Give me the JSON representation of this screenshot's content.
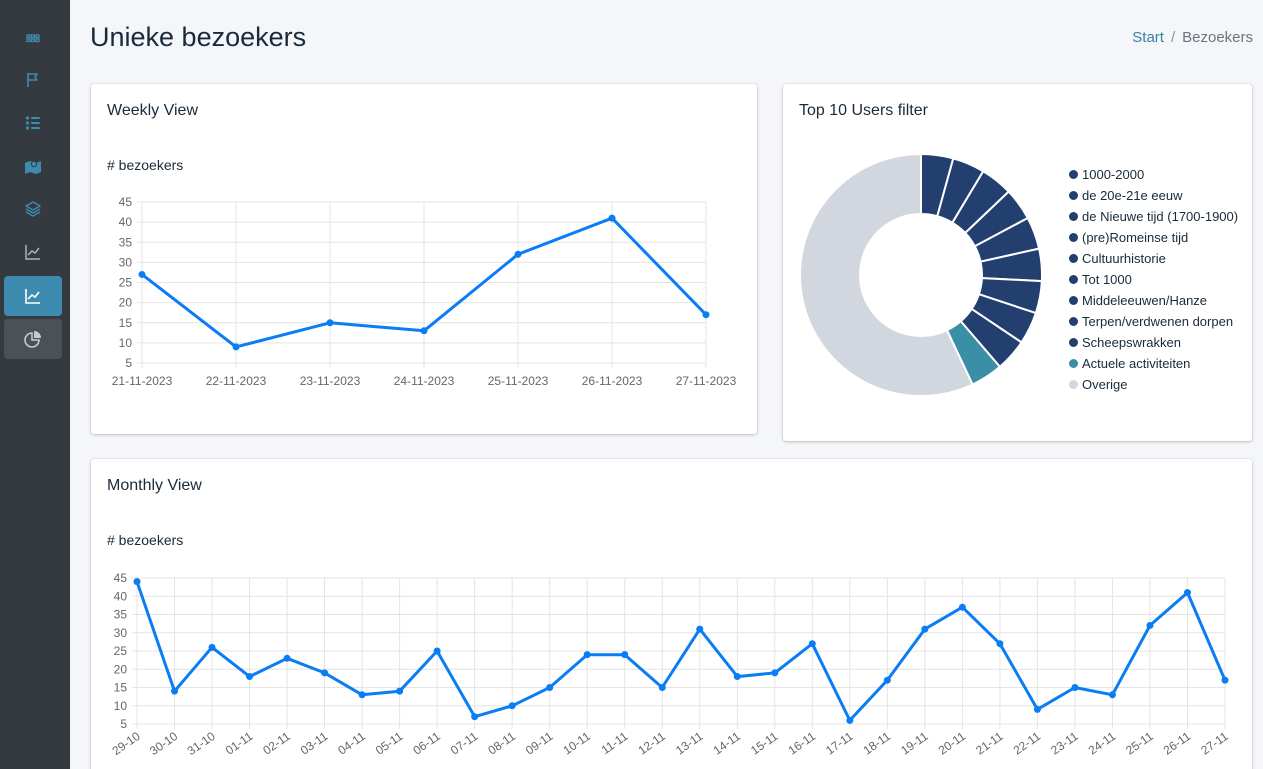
{
  "header": {
    "title": "Unieke bezoekers",
    "breadcrumb": {
      "home": "Start",
      "separator": "/",
      "current": "Bezoekers"
    }
  },
  "sidebar": {
    "items": [
      {
        "icon": "grid-icon"
      },
      {
        "icon": "flag-icon"
      },
      {
        "icon": "list-icon"
      },
      {
        "icon": "map-icon"
      },
      {
        "icon": "layers-icon"
      },
      {
        "icon": "chart-line-icon"
      },
      {
        "icon": "chart-line-icon",
        "active": true
      },
      {
        "icon": "chart-pie-icon"
      }
    ]
  },
  "weekly": {
    "title": "Weekly View",
    "label": "# bezoekers"
  },
  "top10": {
    "title": "Top 10 Users filter"
  },
  "monthly": {
    "title": "Monthly View",
    "label": "# bezoekers"
  },
  "chart_data": [
    {
      "type": "line",
      "title": "Weekly View",
      "ylabel": "# bezoekers",
      "x": [
        "21-11-2023",
        "22-11-2023",
        "23-11-2023",
        "24-11-2023",
        "25-11-2023",
        "26-11-2023",
        "27-11-2023"
      ],
      "values": [
        27,
        9,
        15,
        13,
        32,
        41,
        17
      ],
      "ylim": [
        5,
        45
      ],
      "yticks": [
        5,
        10,
        15,
        20,
        25,
        30,
        35,
        40,
        45
      ],
      "color": "#0a7cf4",
      "grid": true
    },
    {
      "type": "pie",
      "title": "Top 10 Users filter",
      "labels": [
        "1000-2000",
        "de 20e-21e eeuw",
        "de Nieuwe tijd (1700-1900)",
        "(pre)Romeinse tijd",
        "Cultuurhistorie",
        "Tot 1000",
        "Middeleeuwen/Hanze",
        "Terpen/verdwenen dorpen",
        "Scheepswrakken",
        "Actuele activiteiten",
        "Overige"
      ],
      "values": [
        4.3,
        4.3,
        4.3,
        4.3,
        4.3,
        4.3,
        4.3,
        4.3,
        4.3,
        4.3,
        57.0
      ],
      "colors": [
        "#233f70",
        "#233f70",
        "#233f70",
        "#233f70",
        "#233f70",
        "#233f70",
        "#233f70",
        "#233f70",
        "#233f70",
        "#3a8ea6",
        "#d2d6de"
      ],
      "legend": "right"
    },
    {
      "type": "line",
      "title": "Monthly View",
      "ylabel": "# bezoekers",
      "x": [
        "29-10",
        "30-10",
        "31-10",
        "01-11",
        "02-11",
        "03-11",
        "04-11",
        "05-11",
        "06-11",
        "07-11",
        "08-11",
        "09-11",
        "10-11",
        "11-11",
        "12-11",
        "13-11",
        "14-11",
        "15-11",
        "16-11",
        "17-11",
        "18-11",
        "19-11",
        "20-11",
        "21-11",
        "22-11",
        "23-11",
        "24-11",
        "25-11",
        "26-11",
        "27-11"
      ],
      "values": [
        44,
        14,
        26,
        18,
        23,
        19,
        13,
        14,
        25,
        7,
        10,
        15,
        24,
        24,
        15,
        31,
        18,
        19,
        27,
        6,
        17,
        31,
        37,
        27,
        9,
        15,
        13,
        32,
        41,
        17
      ],
      "ylim": [
        5,
        45
      ],
      "yticks": [
        5,
        10,
        15,
        20,
        25,
        30,
        35,
        40,
        45
      ],
      "color": "#0a7cf4",
      "grid": true
    }
  ]
}
